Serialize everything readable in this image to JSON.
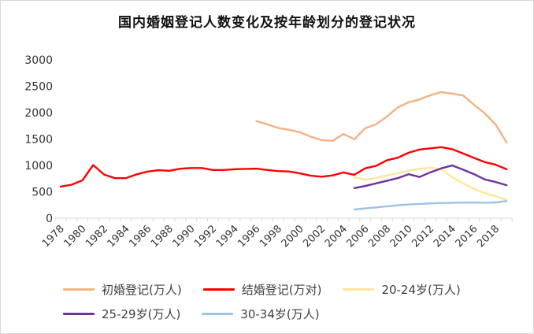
{
  "chart_data": {
    "type": "line",
    "title": "国内婚姻登记人数变化及按年龄划分的登记状况",
    "xlabel": "",
    "ylabel": "",
    "x_range": [
      1978,
      2019
    ],
    "x_tick_labels": [
      "1978",
      "1980",
      "1982",
      "1984",
      "1986",
      "1988",
      "1990",
      "1992",
      "1994",
      "1996",
      "1998",
      "2000",
      "2002",
      "2004",
      "2006",
      "2008",
      "2010",
      "2012",
      "2014",
      "2016",
      "2018"
    ],
    "ylim": [
      0,
      3000
    ],
    "y_ticks": [
      0,
      500,
      1000,
      1500,
      2000,
      2500,
      3000
    ],
    "grid": false,
    "legend_position": "bottom",
    "axis_color": "#d9d9d9",
    "tick_label_color": "#333333",
    "series": [
      {
        "key": "first-marriage",
        "name": "初婚登记(万人)",
        "color": "#F4B183",
        "start_year": 1996,
        "values": [
          1840,
          1780,
          1710,
          1675,
          1630,
          1545,
          1480,
          1465,
          1595,
          1495,
          1705,
          1780,
          1925,
          2100,
          2195,
          2250,
          2330,
          2390,
          2360,
          2325,
          2150,
          1985,
          1775,
          1435
        ]
      },
      {
        "key": "marriage-registrations",
        "name": "结婚登记(万对)",
        "color": "#FF0000",
        "start_year": 1978,
        "values": [
          598,
          634,
          717,
          1007,
          827,
          758,
          759,
          831,
          884,
          909,
          899,
          937,
          951,
          951,
          913,
          913,
          929,
          934,
          939,
          914,
          892,
          885,
          849,
          805,
          786,
          811,
          867,
          823,
          945,
          991,
          1098,
          1146,
          1241,
          1302,
          1324,
          1347,
          1307,
          1225,
          1143,
          1063,
          1014,
          927
        ]
      },
      {
        "key": "age-20-24",
        "name": "20-24岁(万人)",
        "color": "#FFE699",
        "start_year": 2005,
        "values": [
          775,
          730,
          760,
          810,
          850,
          900,
          935,
          955,
          930,
          775,
          660,
          560,
          475,
          415,
          355
        ]
      },
      {
        "key": "age-25-29",
        "name": "25-29岁(万人)",
        "color": "#7030A0",
        "start_year": 2005,
        "values": [
          570,
          610,
          660,
          710,
          760,
          835,
          780,
          870,
          945,
          1000,
          920,
          835,
          735,
          685,
          625
        ]
      },
      {
        "key": "age-30-34",
        "name": "30-34岁(万人)",
        "color": "#9DC3E6",
        "start_year": 2005,
        "values": [
          165,
          185,
          205,
          225,
          245,
          260,
          270,
          280,
          288,
          293,
          295,
          297,
          293,
          298,
          325
        ]
      }
    ]
  }
}
